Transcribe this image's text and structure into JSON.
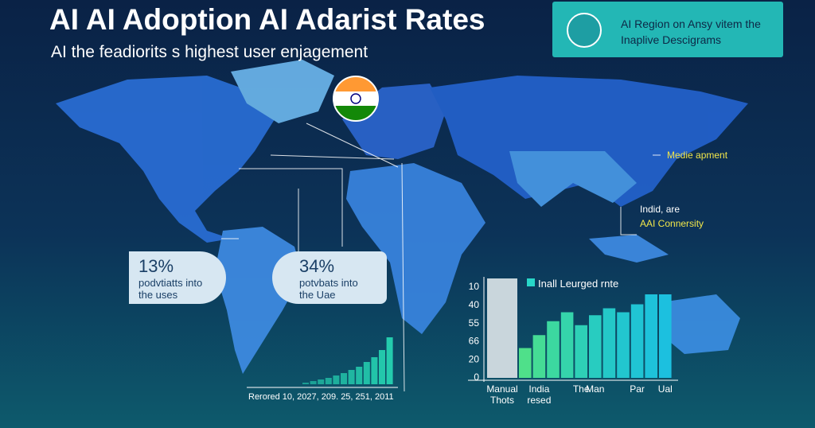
{
  "header": {
    "title": "AI AI Adoption AI Adarist Rates",
    "subtitle": "AI the feadiorits s highest user enjagement"
  },
  "card": {
    "line1": "AI Region on Ansy vitem the",
    "line2": "Inaplive Descigrams"
  },
  "callouts": [
    {
      "value": "13%",
      "text": "podvtiatts into the uses"
    },
    {
      "value": "34%",
      "text": "potvbats into the Uae"
    }
  ],
  "annotations": [
    "Medie apment",
    "Indid, are",
    "AAI Connersity"
  ],
  "chart_data": [
    {
      "type": "bar",
      "caption": "Rerored 10, 2027, 209. 25, 251, 2011",
      "values": [
        2,
        4,
        6,
        8,
        11,
        14,
        18,
        22,
        28,
        34,
        43,
        59
      ],
      "ylim": [
        0,
        60
      ],
      "color": "#25d0b0"
    },
    {
      "type": "bar",
      "legend": "Inall Leurged rnte",
      "axis_labels": [
        "10",
        "40",
        "55",
        "66",
        "20",
        "0"
      ],
      "categories": [
        "Manual Thots",
        null,
        "India resed",
        null,
        null,
        "The",
        "Man",
        null,
        null,
        "Par",
        null,
        "Ual"
      ],
      "values": [
        100,
        30,
        43,
        57,
        66,
        53,
        63,
        70,
        66,
        74,
        84,
        84
      ],
      "ylim": [
        0,
        100
      ],
      "colors": [
        "#c9d6dc",
        "#4fe08a",
        "#45dc95",
        "#3cd8a0",
        "#35d4ab",
        "#2ed0b6",
        "#28ccc0",
        "#24c8c8",
        "#22c6cf",
        "#20c4d4",
        "#1ec2da",
        "#1cc0df"
      ]
    }
  ]
}
